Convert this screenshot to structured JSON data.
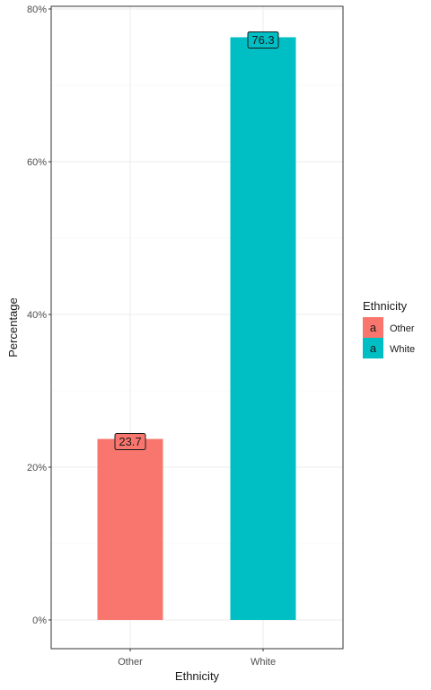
{
  "chart_data": {
    "type": "bar",
    "categories": [
      "Other",
      "White"
    ],
    "values": [
      23.7,
      76.3
    ],
    "data_labels": [
      "23.7",
      "76.3"
    ],
    "colors": [
      "#F8766D",
      "#00BFC4"
    ],
    "xlabel": "Ethnicity",
    "ylabel": "Percentage",
    "ylim": [
      -3.8,
      80.1
    ],
    "yticks": [
      0,
      20,
      40,
      60,
      80
    ],
    "ytick_labels": [
      "0%",
      "20%",
      "40%",
      "60%",
      "80%"
    ],
    "grid": true,
    "legend": {
      "title": "Ethnicity",
      "position": "right",
      "entries": [
        "Other",
        "White"
      ],
      "key_glyph": "a"
    }
  }
}
